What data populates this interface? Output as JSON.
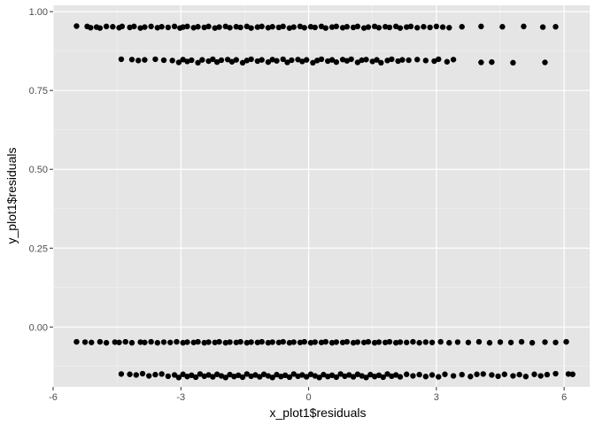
{
  "chart_data": {
    "type": "scatter",
    "title": "",
    "xlabel": "x_plot1$residuals",
    "ylabel": "y_plot1$residuals",
    "xlim": [
      -6,
      6.6
    ],
    "ylim": [
      -0.19,
      1.02
    ],
    "xticks": [
      -6,
      -3,
      0,
      3,
      6
    ],
    "xtick_labels": [
      "-6",
      "-3",
      "0",
      "3",
      "6"
    ],
    "yticks": [
      0.0,
      0.25,
      0.5,
      0.75,
      1.0
    ],
    "ytick_labels": [
      "0.00",
      "0.25",
      "0.50",
      "0.75",
      "1.00"
    ],
    "grid": true,
    "background": "#e5e5e5",
    "point_color": "#000000",
    "series": [
      {
        "points": [
          [
            -5.45,
            0.954
          ],
          [
            -5.2,
            0.953
          ],
          [
            -5.12,
            0.949
          ],
          [
            -4.98,
            0.951
          ],
          [
            -4.9,
            0.948
          ],
          [
            -4.75,
            0.953
          ],
          [
            -4.6,
            0.952
          ],
          [
            -4.45,
            0.949
          ],
          [
            -4.38,
            0.953
          ],
          [
            -4.2,
            0.95
          ],
          [
            -4.1,
            0.953
          ],
          [
            -3.95,
            0.948
          ],
          [
            -3.85,
            0.951
          ],
          [
            -3.7,
            0.953
          ],
          [
            -3.55,
            0.949
          ],
          [
            -3.45,
            0.952
          ],
          [
            -3.3,
            0.95
          ],
          [
            -3.15,
            0.953
          ],
          [
            -3.02,
            0.948
          ],
          [
            -2.95,
            0.951
          ],
          [
            -2.85,
            0.953
          ],
          [
            -2.7,
            0.949
          ],
          [
            -2.6,
            0.952
          ],
          [
            -2.45,
            0.95
          ],
          [
            -2.35,
            0.953
          ],
          [
            -2.2,
            0.948
          ],
          [
            -2.1,
            0.951
          ],
          [
            -1.95,
            0.953
          ],
          [
            -1.85,
            0.949
          ],
          [
            -1.7,
            0.952
          ],
          [
            -1.6,
            0.95
          ],
          [
            -1.45,
            0.953
          ],
          [
            -1.35,
            0.948
          ],
          [
            -1.2,
            0.951
          ],
          [
            -1.1,
            0.953
          ],
          [
            -0.95,
            0.949
          ],
          [
            -0.85,
            0.952
          ],
          [
            -0.7,
            0.95
          ],
          [
            -0.6,
            0.953
          ],
          [
            -0.45,
            0.948
          ],
          [
            -0.35,
            0.951
          ],
          [
            -0.2,
            0.953
          ],
          [
            -0.1,
            0.949
          ],
          [
            0.05,
            0.952
          ],
          [
            0.15,
            0.95
          ],
          [
            0.3,
            0.953
          ],
          [
            0.4,
            0.948
          ],
          [
            0.55,
            0.951
          ],
          [
            0.65,
            0.953
          ],
          [
            0.8,
            0.949
          ],
          [
            0.9,
            0.952
          ],
          [
            1.05,
            0.95
          ],
          [
            1.15,
            0.953
          ],
          [
            1.3,
            0.948
          ],
          [
            1.4,
            0.951
          ],
          [
            1.55,
            0.953
          ],
          [
            1.65,
            0.949
          ],
          [
            1.8,
            0.952
          ],
          [
            1.9,
            0.95
          ],
          [
            2.05,
            0.953
          ],
          [
            2.15,
            0.948
          ],
          [
            2.3,
            0.951
          ],
          [
            2.4,
            0.953
          ],
          [
            2.55,
            0.949
          ],
          [
            2.7,
            0.952
          ],
          [
            2.85,
            0.95
          ],
          [
            3.0,
            0.953
          ],
          [
            3.15,
            0.951
          ],
          [
            3.3,
            0.949
          ],
          [
            3.6,
            0.952
          ],
          [
            4.05,
            0.953
          ],
          [
            4.55,
            0.952
          ],
          [
            5.05,
            0.953
          ],
          [
            5.5,
            0.951
          ],
          [
            5.8,
            0.952
          ],
          [
            -4.4,
            0.849
          ],
          [
            -4.15,
            0.848
          ],
          [
            -4.0,
            0.845
          ],
          [
            -3.85,
            0.847
          ],
          [
            -3.6,
            0.849
          ],
          [
            -3.4,
            0.846
          ],
          [
            -3.2,
            0.845
          ],
          [
            -3.05,
            0.839
          ],
          [
            -2.95,
            0.848
          ],
          [
            -2.85,
            0.842
          ],
          [
            -2.75,
            0.846
          ],
          [
            -2.6,
            0.838
          ],
          [
            -2.5,
            0.847
          ],
          [
            -2.35,
            0.843
          ],
          [
            -2.25,
            0.849
          ],
          [
            -2.15,
            0.84
          ],
          [
            -2.05,
            0.846
          ],
          [
            -1.9,
            0.848
          ],
          [
            -1.8,
            0.841
          ],
          [
            -1.7,
            0.847
          ],
          [
            -1.55,
            0.838
          ],
          [
            -1.45,
            0.845
          ],
          [
            -1.35,
            0.849
          ],
          [
            -1.2,
            0.843
          ],
          [
            -1.1,
            0.847
          ],
          [
            -0.95,
            0.84
          ],
          [
            -0.85,
            0.848
          ],
          [
            -0.75,
            0.844
          ],
          [
            -0.6,
            0.849
          ],
          [
            -0.5,
            0.839
          ],
          [
            -0.4,
            0.846
          ],
          [
            -0.25,
            0.848
          ],
          [
            -0.15,
            0.842
          ],
          [
            -0.05,
            0.847
          ],
          [
            0.1,
            0.838
          ],
          [
            0.2,
            0.845
          ],
          [
            0.3,
            0.849
          ],
          [
            0.45,
            0.843
          ],
          [
            0.55,
            0.847
          ],
          [
            0.65,
            0.84
          ],
          [
            0.8,
            0.848
          ],
          [
            0.9,
            0.844
          ],
          [
            1.0,
            0.849
          ],
          [
            1.15,
            0.839
          ],
          [
            1.25,
            0.846
          ],
          [
            1.35,
            0.848
          ],
          [
            1.5,
            0.842
          ],
          [
            1.6,
            0.847
          ],
          [
            1.7,
            0.838
          ],
          [
            1.85,
            0.845
          ],
          [
            1.95,
            0.849
          ],
          [
            2.1,
            0.843
          ],
          [
            2.2,
            0.847
          ],
          [
            2.35,
            0.846
          ],
          [
            2.55,
            0.848
          ],
          [
            2.75,
            0.845
          ],
          [
            2.95,
            0.843
          ],
          [
            3.05,
            0.849
          ],
          [
            3.25,
            0.841
          ],
          [
            3.4,
            0.848
          ],
          [
            4.05,
            0.839
          ],
          [
            4.3,
            0.84
          ],
          [
            4.8,
            0.838
          ],
          [
            5.55,
            0.839
          ],
          [
            -5.45,
            -0.047
          ],
          [
            -5.25,
            -0.048
          ],
          [
            -5.1,
            -0.049
          ],
          [
            -4.9,
            -0.047
          ],
          [
            -4.75,
            -0.05
          ],
          [
            -4.55,
            -0.048
          ],
          [
            -4.45,
            -0.049
          ],
          [
            -4.3,
            -0.047
          ],
          [
            -4.15,
            -0.05
          ],
          [
            -3.95,
            -0.048
          ],
          [
            -3.85,
            -0.049
          ],
          [
            -3.7,
            -0.047
          ],
          [
            -3.55,
            -0.05
          ],
          [
            -3.4,
            -0.048
          ],
          [
            -3.25,
            -0.049
          ],
          [
            -3.1,
            -0.047
          ],
          [
            -2.95,
            -0.05
          ],
          [
            -2.85,
            -0.048
          ],
          [
            -2.7,
            -0.049
          ],
          [
            -2.6,
            -0.047
          ],
          [
            -2.45,
            -0.05
          ],
          [
            -2.35,
            -0.048
          ],
          [
            -2.2,
            -0.049
          ],
          [
            -2.1,
            -0.047
          ],
          [
            -1.95,
            -0.05
          ],
          [
            -1.85,
            -0.048
          ],
          [
            -1.7,
            -0.049
          ],
          [
            -1.6,
            -0.047
          ],
          [
            -1.45,
            -0.05
          ],
          [
            -1.35,
            -0.048
          ],
          [
            -1.2,
            -0.049
          ],
          [
            -1.1,
            -0.047
          ],
          [
            -0.95,
            -0.05
          ],
          [
            -0.85,
            -0.048
          ],
          [
            -0.7,
            -0.049
          ],
          [
            -0.6,
            -0.047
          ],
          [
            -0.45,
            -0.05
          ],
          [
            -0.35,
            -0.048
          ],
          [
            -0.2,
            -0.049
          ],
          [
            -0.1,
            -0.047
          ],
          [
            0.05,
            -0.05
          ],
          [
            0.15,
            -0.048
          ],
          [
            0.3,
            -0.049
          ],
          [
            0.4,
            -0.047
          ],
          [
            0.55,
            -0.05
          ],
          [
            0.65,
            -0.048
          ],
          [
            0.8,
            -0.049
          ],
          [
            0.9,
            -0.047
          ],
          [
            1.05,
            -0.05
          ],
          [
            1.15,
            -0.048
          ],
          [
            1.3,
            -0.049
          ],
          [
            1.4,
            -0.047
          ],
          [
            1.55,
            -0.05
          ],
          [
            1.65,
            -0.048
          ],
          [
            1.8,
            -0.049
          ],
          [
            1.9,
            -0.047
          ],
          [
            2.05,
            -0.05
          ],
          [
            2.15,
            -0.048
          ],
          [
            2.3,
            -0.049
          ],
          [
            2.45,
            -0.047
          ],
          [
            2.6,
            -0.05
          ],
          [
            2.75,
            -0.048
          ],
          [
            2.9,
            -0.049
          ],
          [
            3.1,
            -0.047
          ],
          [
            3.3,
            -0.05
          ],
          [
            3.5,
            -0.048
          ],
          [
            3.75,
            -0.049
          ],
          [
            4.0,
            -0.047
          ],
          [
            4.25,
            -0.05
          ],
          [
            4.5,
            -0.048
          ],
          [
            4.75,
            -0.049
          ],
          [
            5.0,
            -0.047
          ],
          [
            5.25,
            -0.05
          ],
          [
            5.55,
            -0.048
          ],
          [
            5.8,
            -0.049
          ],
          [
            6.05,
            -0.047
          ],
          [
            -4.4,
            -0.149
          ],
          [
            -4.2,
            -0.15
          ],
          [
            -4.05,
            -0.152
          ],
          [
            -3.9,
            -0.148
          ],
          [
            -3.75,
            -0.155
          ],
          [
            -3.6,
            -0.151
          ],
          [
            -3.45,
            -0.149
          ],
          [
            -3.3,
            -0.156
          ],
          [
            -3.15,
            -0.152
          ],
          [
            -3.05,
            -0.16
          ],
          [
            -2.95,
            -0.15
          ],
          [
            -2.85,
            -0.157
          ],
          [
            -2.75,
            -0.153
          ],
          [
            -2.65,
            -0.159
          ],
          [
            -2.55,
            -0.149
          ],
          [
            -2.45,
            -0.156
          ],
          [
            -2.35,
            -0.152
          ],
          [
            -2.25,
            -0.158
          ],
          [
            -2.15,
            -0.15
          ],
          [
            -2.05,
            -0.155
          ],
          [
            -1.95,
            -0.16
          ],
          [
            -1.85,
            -0.151
          ],
          [
            -1.75,
            -0.157
          ],
          [
            -1.65,
            -0.153
          ],
          [
            -1.55,
            -0.159
          ],
          [
            -1.45,
            -0.149
          ],
          [
            -1.35,
            -0.156
          ],
          [
            -1.25,
            -0.152
          ],
          [
            -1.15,
            -0.158
          ],
          [
            -1.05,
            -0.15
          ],
          [
            -0.95,
            -0.155
          ],
          [
            -0.85,
            -0.16
          ],
          [
            -0.75,
            -0.151
          ],
          [
            -0.65,
            -0.157
          ],
          [
            -0.55,
            -0.153
          ],
          [
            -0.45,
            -0.159
          ],
          [
            -0.35,
            -0.149
          ],
          [
            -0.25,
            -0.156
          ],
          [
            -0.15,
            -0.152
          ],
          [
            -0.05,
            -0.158
          ],
          [
            0.05,
            -0.15
          ],
          [
            0.15,
            -0.155
          ],
          [
            0.25,
            -0.16
          ],
          [
            0.35,
            -0.151
          ],
          [
            0.45,
            -0.157
          ],
          [
            0.55,
            -0.153
          ],
          [
            0.65,
            -0.159
          ],
          [
            0.75,
            -0.149
          ],
          [
            0.85,
            -0.156
          ],
          [
            0.95,
            -0.152
          ],
          [
            1.05,
            -0.158
          ],
          [
            1.15,
            -0.15
          ],
          [
            1.25,
            -0.155
          ],
          [
            1.35,
            -0.16
          ],
          [
            1.45,
            -0.151
          ],
          [
            1.55,
            -0.157
          ],
          [
            1.65,
            -0.153
          ],
          [
            1.75,
            -0.159
          ],
          [
            1.85,
            -0.149
          ],
          [
            1.95,
            -0.156
          ],
          [
            2.05,
            -0.152
          ],
          [
            2.15,
            -0.158
          ],
          [
            2.3,
            -0.15
          ],
          [
            2.45,
            -0.155
          ],
          [
            2.6,
            -0.151
          ],
          [
            2.75,
            -0.157
          ],
          [
            2.9,
            -0.152
          ],
          [
            3.05,
            -0.158
          ],
          [
            3.2,
            -0.15
          ],
          [
            3.4,
            -0.155
          ],
          [
            3.6,
            -0.151
          ],
          [
            3.8,
            -0.157
          ],
          [
            3.95,
            -0.15
          ],
          [
            4.1,
            -0.149
          ],
          [
            4.3,
            -0.152
          ],
          [
            4.45,
            -0.156
          ],
          [
            4.6,
            -0.15
          ],
          [
            4.8,
            -0.155
          ],
          [
            4.95,
            -0.151
          ],
          [
            5.1,
            -0.157
          ],
          [
            5.3,
            -0.15
          ],
          [
            5.45,
            -0.155
          ],
          [
            5.6,
            -0.151
          ],
          [
            5.8,
            -0.148
          ],
          [
            6.1,
            -0.149
          ],
          [
            6.2,
            -0.15
          ]
        ]
      }
    ]
  }
}
